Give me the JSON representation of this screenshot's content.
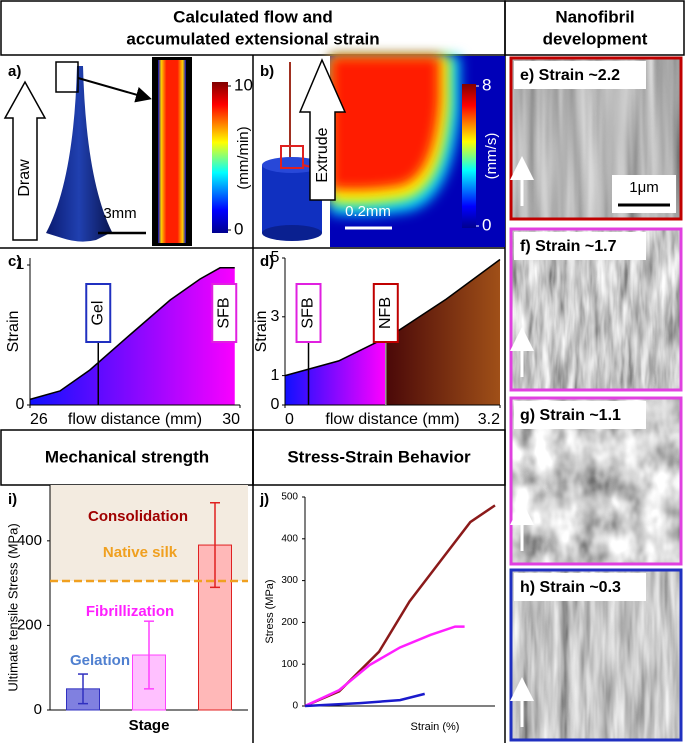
{
  "headers": {
    "flow": [
      "Calculated flow and",
      "accumulated extensional strain"
    ],
    "nanofibril": [
      "Nanofibril",
      "development"
    ],
    "mechanical": "Mechanical strength",
    "stress_strain": "Stress-Strain Behavior"
  },
  "panel_a": {
    "label": "a)",
    "arrow": "Draw",
    "scale_bar": "3mm",
    "colorbar": {
      "unit": "(mm/min)",
      "range": [
        0,
        10
      ],
      "ticks": [
        0,
        10
      ]
    }
  },
  "panel_b": {
    "label": "b)",
    "arrow": "Extrude",
    "scale_bar": "0.2mm",
    "colorbar": {
      "unit": "(mm/s)",
      "range": [
        0,
        8
      ],
      "ticks": [
        0,
        8
      ]
    }
  },
  "sem_panels": [
    {
      "label": "e) Strain ~2.2",
      "color": "#c00000",
      "scale_bar": "1μm"
    },
    {
      "label": "f) Strain ~1.7",
      "color": "#e040e0"
    },
    {
      "label": "g) Strain ~1.1",
      "color": "#e040e0"
    },
    {
      "label": "h) Strain ~0.3",
      "color": "#2030c0"
    }
  ],
  "chart_data": [
    {
      "type": "area",
      "label": "c)",
      "ylabel": "Strain",
      "xlabel": "flow distance (mm)",
      "x": [
        26,
        26.57,
        27.14,
        27.9,
        28.67,
        29.24,
        29.62,
        29.9
      ],
      "values": [
        0.04,
        0.1,
        0.25,
        0.5,
        0.75,
        0.9,
        0.98,
        0.98
      ],
      "xlim": [
        26,
        30
      ],
      "xticks": [
        26,
        30
      ],
      "ylim": [
        0,
        1.05
      ],
      "yticks": [
        0,
        1
      ],
      "colors": [
        [
          "#1010ff",
          "#ff00ff"
        ]
      ],
      "markers": [
        {
          "label": "Gel",
          "x": 27.3,
          "color": "#2030c0",
          "line": true
        },
        {
          "label": "SFB",
          "x": 29.7,
          "color": "#e020e0",
          "line": false
        }
      ]
    },
    {
      "type": "area",
      "label": "d)",
      "ylabel": "Strain",
      "xlabel": "flow distance (mm)",
      "x": [
        0,
        0.8,
        1.6,
        2.4,
        3.2
      ],
      "values": [
        1.0,
        1.5,
        2.4,
        3.6,
        4.95
      ],
      "xlim": [
        0,
        3.2
      ],
      "xticks": [
        0,
        3.2
      ],
      "ylim": [
        0,
        5
      ],
      "yticks": [
        0,
        1,
        3,
        5
      ],
      "colors": [
        [
          "#1010ff",
          "#ff00ff"
        ],
        [
          "#4a0808",
          "#a05018"
        ]
      ],
      "markers": [
        {
          "label": "SFB",
          "x": 0.35,
          "color": "#e020e0",
          "line": true
        },
        {
          "label": "NFB",
          "x": 1.5,
          "color": "#c00000",
          "line": true,
          "boundary": true
        }
      ]
    },
    {
      "type": "bar",
      "label": "i)",
      "ylabel": "Ultimate tensile Stress (MPa)",
      "xlabel": "Stage",
      "categories": [
        "Gelation",
        "Fibrillization",
        "Consolidation"
      ],
      "values": [
        50,
        130,
        390
      ],
      "errors": [
        35,
        80,
        100
      ],
      "colors": [
        "#8080e0",
        "#ffc0ff",
        "#ffb8b8"
      ],
      "edge_colors": [
        "#3030c0",
        "#ff40ff",
        "#e02020"
      ],
      "label_colors": [
        "#5080d0",
        "#ff20ff",
        "#a00000"
      ],
      "ylim": [
        0,
        532
      ],
      "yticks": [
        0,
        200,
        400
      ],
      "reference": {
        "value": 305,
        "label": "Native silk",
        "color": "#f0a020"
      },
      "shade_color": "#f3ebe0"
    },
    {
      "type": "line",
      "label": "j)",
      "ylabel": "Stress (MPa)",
      "xlabel": "Strain (%)",
      "xlim": [
        0,
        100
      ],
      "ylim": [
        0,
        500
      ],
      "yticks": [
        0,
        100,
        200,
        300,
        400,
        500
      ],
      "series": [
        {
          "color": "#8b1a1a",
          "x": [
            0,
            18,
            39,
            55,
            71,
            87,
            100
          ],
          "values": [
            0,
            35,
            130,
            250,
            345,
            440,
            480
          ]
        },
        {
          "color": "#ff1fff",
          "x": [
            0,
            18,
            34,
            50,
            66,
            79,
            84
          ],
          "values": [
            0,
            38,
            98,
            140,
            170,
            190,
            190
          ]
        },
        {
          "color": "#1a1acc",
          "x": [
            0,
            29,
            50,
            63
          ],
          "values": [
            0,
            7,
            14,
            29
          ]
        }
      ]
    }
  ]
}
